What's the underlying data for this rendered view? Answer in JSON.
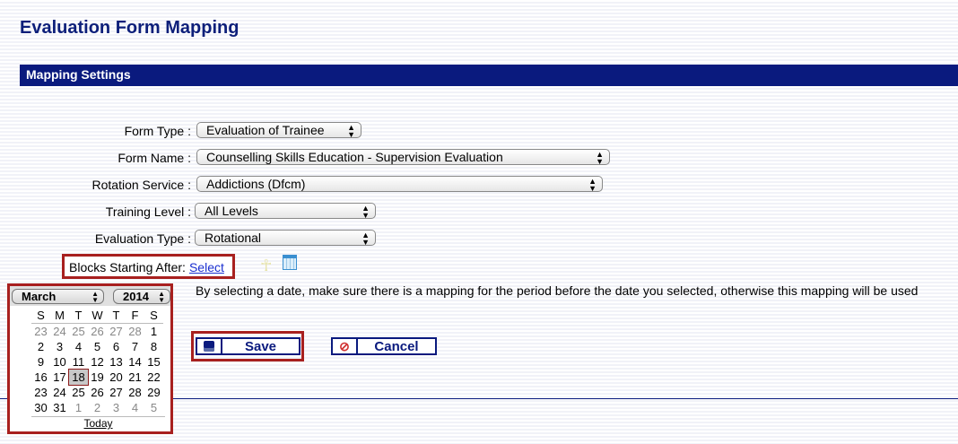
{
  "page": {
    "title": "Evaluation Form Mapping",
    "section": "Mapping Settings"
  },
  "form": {
    "form_type": {
      "label": "Form Type :",
      "value": "Evaluation of Trainee"
    },
    "form_name": {
      "label": "Form Name :",
      "value": "Counselling Skills Education - Supervision Evaluation"
    },
    "rotation_service": {
      "label": "Rotation Service :",
      "value": "Addictions (Dfcm)"
    },
    "training_level": {
      "label": "Training Level :",
      "value": "All Levels"
    },
    "evaluation_type": {
      "label": "Evaluation Type :",
      "value": "Rotational"
    },
    "blocks": {
      "label": "Blocks Starting After:",
      "link": "Select"
    },
    "info": "By selecting a date, make sure there is a mapping for the period before the date you selected, otherwise this mapping will be used"
  },
  "buttons": {
    "save": "Save",
    "cancel": "Cancel"
  },
  "calendar": {
    "month": "March",
    "year": "2014",
    "weekdays": [
      "S",
      "M",
      "T",
      "W",
      "T",
      "F",
      "S"
    ],
    "weeks": [
      [
        "23",
        "24",
        "25",
        "26",
        "27",
        "28",
        "1"
      ],
      [
        "2",
        "3",
        "4",
        "5",
        "6",
        "7",
        "8"
      ],
      [
        "9",
        "10",
        "11",
        "12",
        "13",
        "14",
        "15"
      ],
      [
        "16",
        "17",
        "18",
        "19",
        "20",
        "21",
        "22"
      ],
      [
        "23",
        "24",
        "25",
        "26",
        "27",
        "28",
        "29"
      ],
      [
        "30",
        "31",
        "1",
        "2",
        "3",
        "4",
        "5"
      ]
    ],
    "selected": "18",
    "today": "Today"
  },
  "colors": {
    "navy": "#0a1a7e",
    "highlight": "#a8201f"
  }
}
